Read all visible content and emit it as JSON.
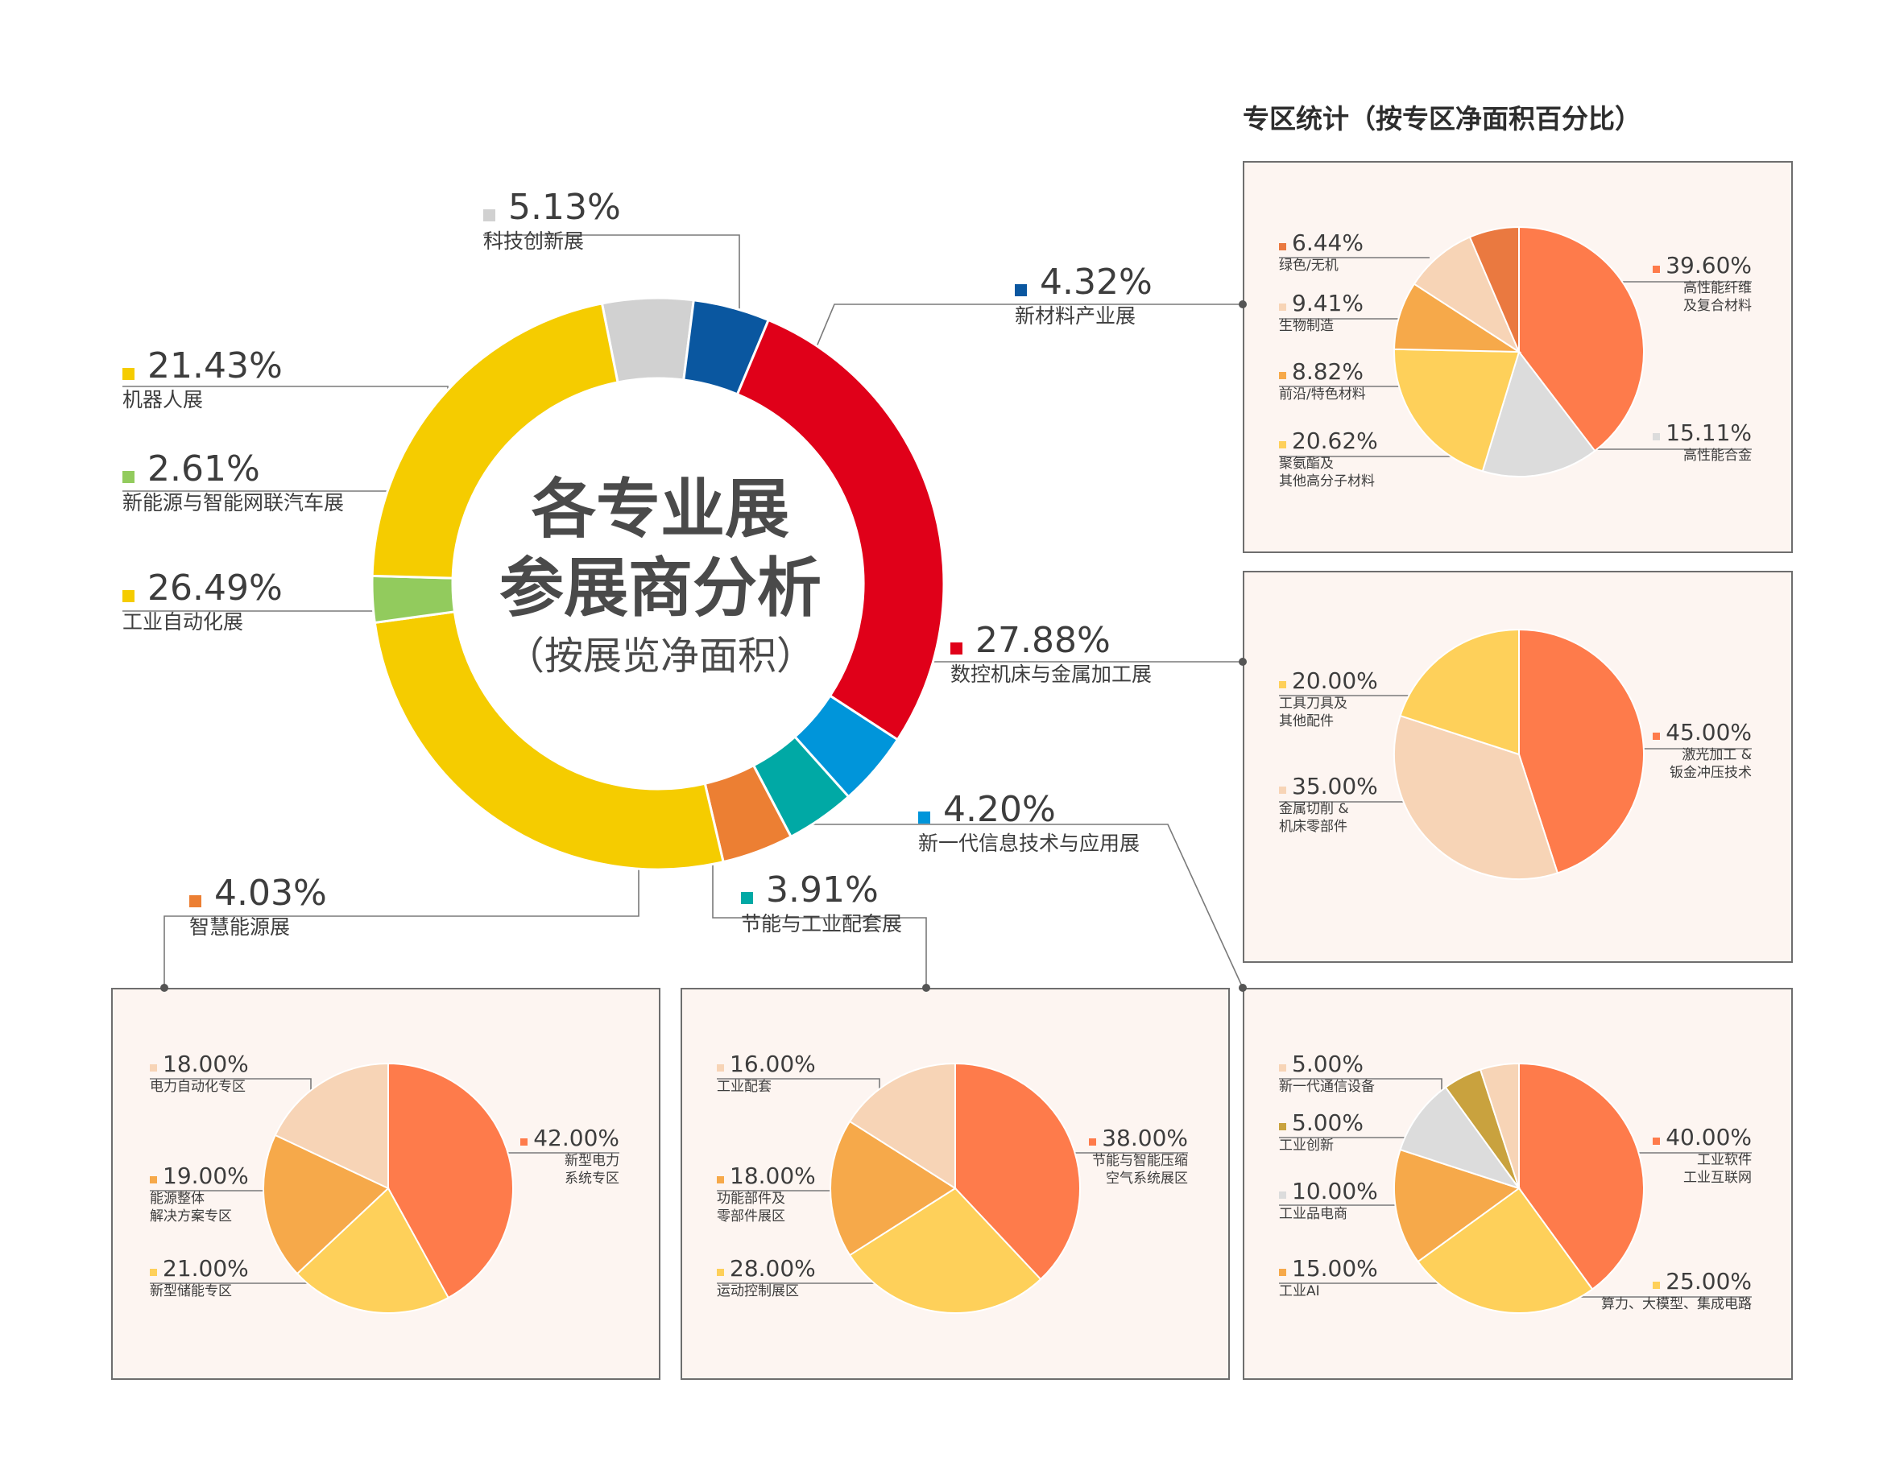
{
  "chart_data": [
    {
      "type": "pie",
      "variant": "donut",
      "title_lines": [
        "各专业展",
        "参展商分析"
      ],
      "subtitle": "（按展览净面积）",
      "series": [
        {
          "name": "科技创新展",
          "value": 5.13,
          "label": "5.13%",
          "color": "#d1d1d1"
        },
        {
          "name": "新材料产业展",
          "value": 4.32,
          "label": "4.32%",
          "color": "#0a57a0"
        },
        {
          "name": "数控机床与金属加工展",
          "value": 27.88,
          "label": "27.88%",
          "color": "#e00019"
        },
        {
          "name": "新一代信息技术与应用展",
          "value": 4.2,
          "label": "4.20%",
          "color": "#0095da"
        },
        {
          "name": "节能与工业配套展",
          "value": 3.91,
          "label": "3.91%",
          "color": "#00a9a5"
        },
        {
          "name": "智慧能源展",
          "value": 4.03,
          "label": "4.03%",
          "color": "#ec7f33"
        },
        {
          "name": "工业自动化展",
          "value": 26.49,
          "label": "26.49%",
          "color": "#f5cc00"
        },
        {
          "name": "新能源与智能网联汽车展",
          "value": 2.61,
          "label": "2.61%",
          "color": "#92cb5d"
        },
        {
          "name": "机器人展",
          "value": 21.43,
          "label": "21.43%",
          "color": "#f5cc00"
        }
      ]
    },
    {
      "type": "pie",
      "parent": "新材料产业展",
      "series": [
        {
          "name": "高性能纤维\n及复合材料",
          "value": 39.6,
          "label": "39.60%",
          "color": "#fe7b4b"
        },
        {
          "name": "高性能合金",
          "value": 15.11,
          "label": "15.11%",
          "color": "#dcdcdc"
        },
        {
          "name": "聚氨酯及\n其他高分子材料",
          "value": 20.62,
          "label": "20.62%",
          "color": "#fed05a"
        },
        {
          "name": "前沿/特色材料",
          "value": 8.82,
          "label": "8.82%",
          "color": "#f6a94a"
        },
        {
          "name": "生物制造",
          "value": 9.41,
          "label": "9.41%",
          "color": "#f7d4b6"
        },
        {
          "name": "绿色/无机",
          "value": 6.44,
          "label": "6.44%",
          "color": "#ea7940"
        }
      ]
    },
    {
      "type": "pie",
      "parent": "数控机床与金属加工展",
      "series": [
        {
          "name": "激光加工 &\n钣金冲压技术",
          "value": 45.0,
          "label": "45.00%",
          "color": "#fe7b4b"
        },
        {
          "name": "金属切削 &\n机床零部件",
          "value": 35.0,
          "label": "35.00%",
          "color": "#f7d4b6"
        },
        {
          "name": "工具刀具及\n其他配件",
          "value": 20.0,
          "label": "20.00%",
          "color": "#fed05a"
        }
      ]
    },
    {
      "type": "pie",
      "parent": "智慧能源展",
      "series": [
        {
          "name": "新型电力\n系统专区",
          "value": 42.0,
          "label": "42.00%",
          "color": "#fe7b4b"
        },
        {
          "name": "新型储能专区",
          "value": 21.0,
          "label": "21.00%",
          "color": "#fed05a"
        },
        {
          "name": "能源整体\n解决方案专区",
          "value": 19.0,
          "label": "19.00%",
          "color": "#f6a94a"
        },
        {
          "name": "电力自动化专区",
          "value": 18.0,
          "label": "18.00%",
          "color": "#f7d4b6"
        }
      ]
    },
    {
      "type": "pie",
      "parent": "节能与工业配套展",
      "series": [
        {
          "name": "节能与智能压缩\n空气系统展区",
          "value": 38.0,
          "label": "38.00%",
          "color": "#fe7b4b"
        },
        {
          "name": "运动控制展区",
          "value": 28.0,
          "label": "28.00%",
          "color": "#fed05a"
        },
        {
          "name": "功能部件及\n零部件展区",
          "value": 18.0,
          "label": "18.00%",
          "color": "#f6a94a"
        },
        {
          "name": "工业配套",
          "value": 16.0,
          "label": "16.00%",
          "color": "#f7d4b6"
        }
      ]
    },
    {
      "type": "pie",
      "parent": "新一代信息技术与应用展",
      "series": [
        {
          "name": "工业软件\n工业互联网",
          "value": 40.0,
          "label": "40.00%",
          "color": "#fe7b4b"
        },
        {
          "name": "算力、大模型、集成电路",
          "value": 25.0,
          "label": "25.00%",
          "color": "#fed05a"
        },
        {
          "name": "工业AI",
          "value": 15.0,
          "label": "15.00%",
          "color": "#f6a94a"
        },
        {
          "name": "工业品电商",
          "value": 10.0,
          "label": "10.00%",
          "color": "#dcdcdc"
        },
        {
          "name": "工业创新",
          "value": 5.0,
          "label": "5.00%",
          "color": "#c9a23e"
        },
        {
          "name": "新一代通信设备",
          "value": 5.0,
          "label": "5.00%",
          "color": "#f7d4b6"
        }
      ]
    }
  ],
  "zones_title": "专区统计（按专区净面积百分比）"
}
